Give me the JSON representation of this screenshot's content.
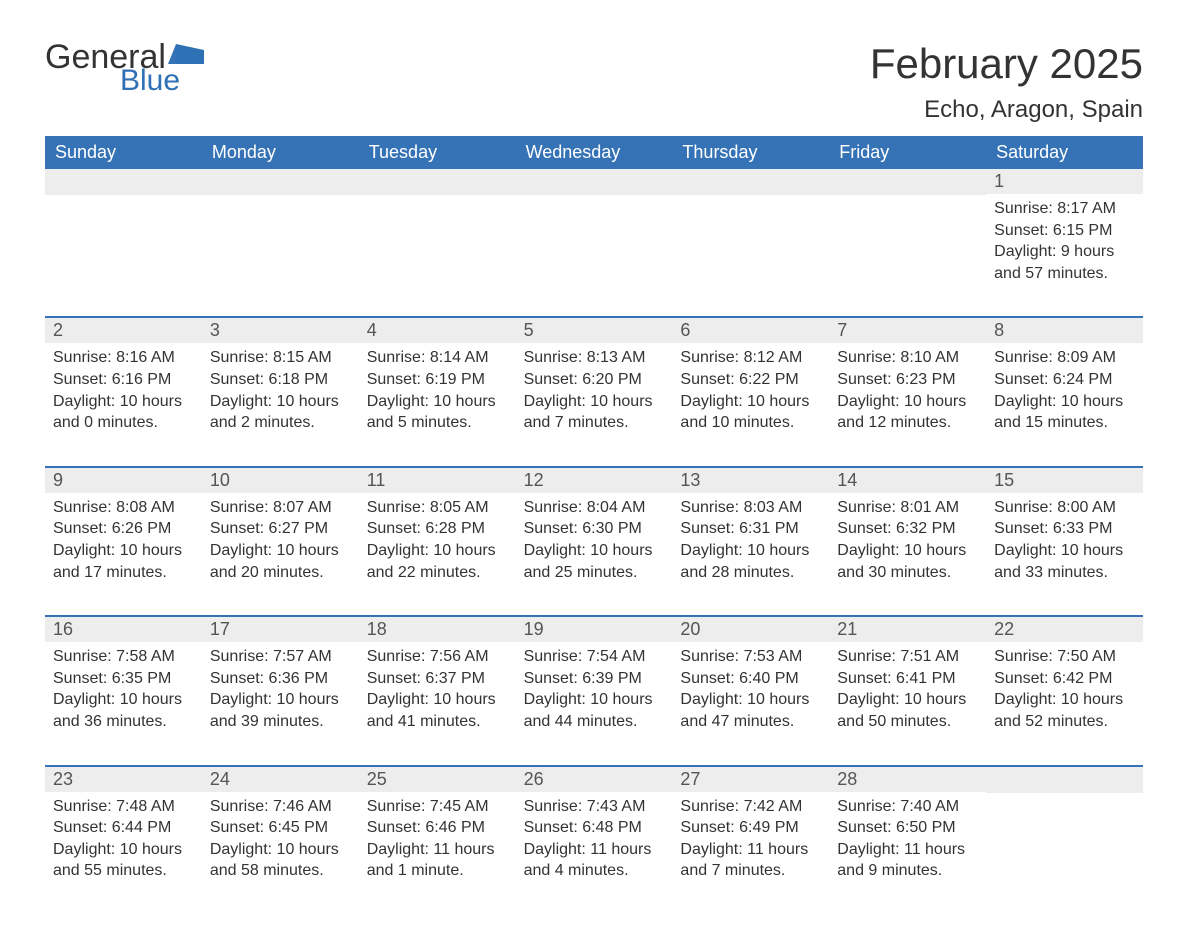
{
  "logo": {
    "text1": "General",
    "text2": "Blue",
    "color": "#2f71b5"
  },
  "title": "February 2025",
  "location": "Echo, Aragon, Spain",
  "header_bg": "#3573b6",
  "daynum_bg": "#ededed",
  "weekdays": [
    "Sunday",
    "Monday",
    "Tuesday",
    "Wednesday",
    "Thursday",
    "Friday",
    "Saturday"
  ],
  "weeks": [
    [
      null,
      null,
      null,
      null,
      null,
      null,
      {
        "n": "1",
        "sr": "Sunrise: 8:17 AM",
        "ss": "Sunset: 6:15 PM",
        "dl": "Daylight: 9 hours and 57 minutes."
      }
    ],
    [
      {
        "n": "2",
        "sr": "Sunrise: 8:16 AM",
        "ss": "Sunset: 6:16 PM",
        "dl": "Daylight: 10 hours and 0 minutes."
      },
      {
        "n": "3",
        "sr": "Sunrise: 8:15 AM",
        "ss": "Sunset: 6:18 PM",
        "dl": "Daylight: 10 hours and 2 minutes."
      },
      {
        "n": "4",
        "sr": "Sunrise: 8:14 AM",
        "ss": "Sunset: 6:19 PM",
        "dl": "Daylight: 10 hours and 5 minutes."
      },
      {
        "n": "5",
        "sr": "Sunrise: 8:13 AM",
        "ss": "Sunset: 6:20 PM",
        "dl": "Daylight: 10 hours and 7 minutes."
      },
      {
        "n": "6",
        "sr": "Sunrise: 8:12 AM",
        "ss": "Sunset: 6:22 PM",
        "dl": "Daylight: 10 hours and 10 minutes."
      },
      {
        "n": "7",
        "sr": "Sunrise: 8:10 AM",
        "ss": "Sunset: 6:23 PM",
        "dl": "Daylight: 10 hours and 12 minutes."
      },
      {
        "n": "8",
        "sr": "Sunrise: 8:09 AM",
        "ss": "Sunset: 6:24 PM",
        "dl": "Daylight: 10 hours and 15 minutes."
      }
    ],
    [
      {
        "n": "9",
        "sr": "Sunrise: 8:08 AM",
        "ss": "Sunset: 6:26 PM",
        "dl": "Daylight: 10 hours and 17 minutes."
      },
      {
        "n": "10",
        "sr": "Sunrise: 8:07 AM",
        "ss": "Sunset: 6:27 PM",
        "dl": "Daylight: 10 hours and 20 minutes."
      },
      {
        "n": "11",
        "sr": "Sunrise: 8:05 AM",
        "ss": "Sunset: 6:28 PM",
        "dl": "Daylight: 10 hours and 22 minutes."
      },
      {
        "n": "12",
        "sr": "Sunrise: 8:04 AM",
        "ss": "Sunset: 6:30 PM",
        "dl": "Daylight: 10 hours and 25 minutes."
      },
      {
        "n": "13",
        "sr": "Sunrise: 8:03 AM",
        "ss": "Sunset: 6:31 PM",
        "dl": "Daylight: 10 hours and 28 minutes."
      },
      {
        "n": "14",
        "sr": "Sunrise: 8:01 AM",
        "ss": "Sunset: 6:32 PM",
        "dl": "Daylight: 10 hours and 30 minutes."
      },
      {
        "n": "15",
        "sr": "Sunrise: 8:00 AM",
        "ss": "Sunset: 6:33 PM",
        "dl": "Daylight: 10 hours and 33 minutes."
      }
    ],
    [
      {
        "n": "16",
        "sr": "Sunrise: 7:58 AM",
        "ss": "Sunset: 6:35 PM",
        "dl": "Daylight: 10 hours and 36 minutes."
      },
      {
        "n": "17",
        "sr": "Sunrise: 7:57 AM",
        "ss": "Sunset: 6:36 PM",
        "dl": "Daylight: 10 hours and 39 minutes."
      },
      {
        "n": "18",
        "sr": "Sunrise: 7:56 AM",
        "ss": "Sunset: 6:37 PM",
        "dl": "Daylight: 10 hours and 41 minutes."
      },
      {
        "n": "19",
        "sr": "Sunrise: 7:54 AM",
        "ss": "Sunset: 6:39 PM",
        "dl": "Daylight: 10 hours and 44 minutes."
      },
      {
        "n": "20",
        "sr": "Sunrise: 7:53 AM",
        "ss": "Sunset: 6:40 PM",
        "dl": "Daylight: 10 hours and 47 minutes."
      },
      {
        "n": "21",
        "sr": "Sunrise: 7:51 AM",
        "ss": "Sunset: 6:41 PM",
        "dl": "Daylight: 10 hours and 50 minutes."
      },
      {
        "n": "22",
        "sr": "Sunrise: 7:50 AM",
        "ss": "Sunset: 6:42 PM",
        "dl": "Daylight: 10 hours and 52 minutes."
      }
    ],
    [
      {
        "n": "23",
        "sr": "Sunrise: 7:48 AM",
        "ss": "Sunset: 6:44 PM",
        "dl": "Daylight: 10 hours and 55 minutes."
      },
      {
        "n": "24",
        "sr": "Sunrise: 7:46 AM",
        "ss": "Sunset: 6:45 PM",
        "dl": "Daylight: 10 hours and 58 minutes."
      },
      {
        "n": "25",
        "sr": "Sunrise: 7:45 AM",
        "ss": "Sunset: 6:46 PM",
        "dl": "Daylight: 11 hours and 1 minute."
      },
      {
        "n": "26",
        "sr": "Sunrise: 7:43 AM",
        "ss": "Sunset: 6:48 PM",
        "dl": "Daylight: 11 hours and 4 minutes."
      },
      {
        "n": "27",
        "sr": "Sunrise: 7:42 AM",
        "ss": "Sunset: 6:49 PM",
        "dl": "Daylight: 11 hours and 7 minutes."
      },
      {
        "n": "28",
        "sr": "Sunrise: 7:40 AM",
        "ss": "Sunset: 6:50 PM",
        "dl": "Daylight: 11 hours and 9 minutes."
      },
      null
    ]
  ]
}
